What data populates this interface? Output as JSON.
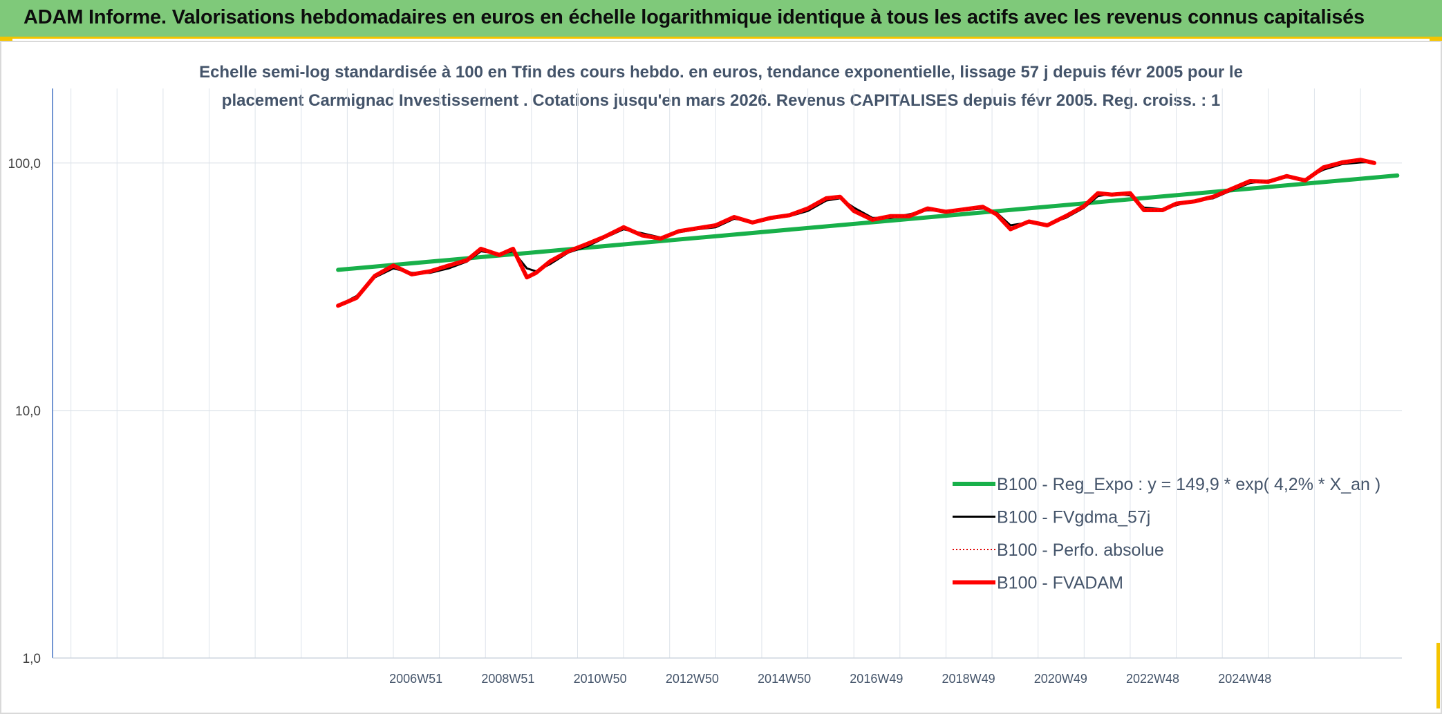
{
  "banner": {
    "title": "ADAM Informe. Valorisations hebdomadaires en euros en échelle logarithmique identique à tous les actifs avec les revenus connus capitalisés",
    "background_color": "#7fc97a",
    "accent_color": "#f5c400"
  },
  "chart_data": {
    "type": "line",
    "title_lines": [
      "Echelle semi-log standardisée à 100 en Tfin des cours hebdo. en euros, tendance exponentielle, lissage 57 j depuis févr 2005 pour le",
      "placement Carmignac Investissement . Cotations jusqu'en mars 2026. Revenus CAPITALISES depuis févr 2005. Reg. croiss. : 1"
    ],
    "y_scale": "log",
    "ylim": [
      1,
      200
    ],
    "y_ticks": [
      {
        "value": 1,
        "label": "1,0"
      },
      {
        "value": 10,
        "label": "10,0"
      },
      {
        "value": 100,
        "label": "100,0"
      }
    ],
    "x_range": [
      1998.6,
      2027.9
    ],
    "x_tick_labels": [
      {
        "x": 2007.0,
        "label": "2006W51"
      },
      {
        "x": 2009.0,
        "label": "2008W51"
      },
      {
        "x": 2011.0,
        "label": "2010W50"
      },
      {
        "x": 2013.0,
        "label": "2012W50"
      },
      {
        "x": 2015.0,
        "label": "2014W50"
      },
      {
        "x": 2017.0,
        "label": "2016W49"
      },
      {
        "x": 2019.0,
        "label": "2018W49"
      },
      {
        "x": 2021.0,
        "label": "2020W49"
      },
      {
        "x": 2023.0,
        "label": "2022W48"
      },
      {
        "x": 2025.0,
        "label": "2024W48"
      }
    ],
    "grid": {
      "vertical": true,
      "horizontal": true
    },
    "legend_position": "bottom-right",
    "series": [
      {
        "name": "B100 - Reg_Expo : y = 149,9 * exp( 4,2% *  X_an )",
        "color": "#18b04a",
        "style": "solid-thick",
        "points": [
          [
            2004.8,
            37.0
          ],
          [
            2027.8,
            89.0
          ]
        ]
      },
      {
        "name": "B100 - FVgdma_57j",
        "color": "#000000",
        "style": "solid",
        "points": [
          [
            2004.8,
            26.5
          ],
          [
            2005.2,
            29.0
          ],
          [
            2005.6,
            34.5
          ],
          [
            2006.0,
            37.5
          ],
          [
            2006.4,
            36.0
          ],
          [
            2006.8,
            36.0
          ],
          [
            2007.2,
            37.5
          ],
          [
            2007.6,
            40.0
          ],
          [
            2007.9,
            44.0
          ],
          [
            2008.3,
            43.0
          ],
          [
            2008.6,
            44.0
          ],
          [
            2008.9,
            37.5
          ],
          [
            2009.1,
            36.5
          ],
          [
            2009.4,
            39.0
          ],
          [
            2009.8,
            43.5
          ],
          [
            2010.2,
            46.0
          ],
          [
            2010.6,
            50.0
          ],
          [
            2011.0,
            54.0
          ],
          [
            2011.4,
            52.0
          ],
          [
            2011.8,
            50.0
          ],
          [
            2012.2,
            52.5
          ],
          [
            2012.6,
            54.0
          ],
          [
            2013.0,
            55.0
          ],
          [
            2013.4,
            59.5
          ],
          [
            2013.8,
            58.0
          ],
          [
            2014.2,
            59.5
          ],
          [
            2014.6,
            61.0
          ],
          [
            2015.0,
            64.0
          ],
          [
            2015.4,
            70.5
          ],
          [
            2015.7,
            72.0
          ],
          [
            2016.0,
            66.0
          ],
          [
            2016.4,
            60.0
          ],
          [
            2016.8,
            60.0
          ],
          [
            2017.2,
            62.0
          ],
          [
            2017.6,
            64.5
          ],
          [
            2018.0,
            64.0
          ],
          [
            2018.4,
            64.5
          ],
          [
            2018.8,
            65.5
          ],
          [
            2019.1,
            63.0
          ],
          [
            2019.4,
            56.0
          ],
          [
            2019.8,
            57.5
          ],
          [
            2020.2,
            56.5
          ],
          [
            2020.6,
            60.0
          ],
          [
            2021.0,
            66.0
          ],
          [
            2021.3,
            73.5
          ],
          [
            2021.6,
            75.0
          ],
          [
            2022.0,
            74.0
          ],
          [
            2022.3,
            66.0
          ],
          [
            2022.7,
            65.0
          ],
          [
            2023.0,
            67.5
          ],
          [
            2023.4,
            70.5
          ],
          [
            2023.8,
            72.0
          ],
          [
            2024.2,
            77.5
          ],
          [
            2024.6,
            83.0
          ],
          [
            2025.0,
            85.0
          ],
          [
            2025.4,
            87.5
          ],
          [
            2025.8,
            86.0
          ],
          [
            2026.2,
            94.0
          ],
          [
            2026.6,
            99.0
          ],
          [
            2027.0,
            100.5
          ],
          [
            2027.3,
            101.0
          ]
        ]
      },
      {
        "name": "B100 - Perfo. absolue",
        "color": "#e00000",
        "style": "dotted",
        "points": [
          [
            2004.8,
            26.5
          ],
          [
            2005.2,
            28.5
          ],
          [
            2005.6,
            35.0
          ],
          [
            2006.0,
            38.5
          ],
          [
            2006.4,
            35.5
          ],
          [
            2006.8,
            36.5
          ],
          [
            2007.2,
            38.5
          ],
          [
            2007.6,
            40.5
          ],
          [
            2007.9,
            45.0
          ],
          [
            2008.3,
            42.5
          ],
          [
            2008.6,
            45.0
          ],
          [
            2008.9,
            34.5
          ],
          [
            2009.1,
            36.0
          ],
          [
            2009.4,
            40.0
          ],
          [
            2009.8,
            44.0
          ],
          [
            2010.2,
            47.0
          ],
          [
            2010.6,
            50.5
          ],
          [
            2011.0,
            55.0
          ],
          [
            2011.4,
            51.0
          ],
          [
            2011.8,
            49.5
          ],
          [
            2012.2,
            53.0
          ],
          [
            2012.6,
            54.5
          ],
          [
            2013.0,
            56.0
          ],
          [
            2013.4,
            60.5
          ],
          [
            2013.8,
            57.5
          ],
          [
            2014.2,
            60.0
          ],
          [
            2014.6,
            61.5
          ],
          [
            2015.0,
            65.5
          ],
          [
            2015.4,
            72.0
          ],
          [
            2015.7,
            73.0
          ],
          [
            2016.0,
            64.0
          ],
          [
            2016.4,
            59.0
          ],
          [
            2016.8,
            61.0
          ],
          [
            2017.2,
            61.0
          ],
          [
            2017.6,
            65.5
          ],
          [
            2018.0,
            63.5
          ],
          [
            2018.4,
            65.0
          ],
          [
            2018.8,
            66.5
          ],
          [
            2019.1,
            62.0
          ],
          [
            2019.4,
            54.0
          ],
          [
            2019.8,
            58.0
          ],
          [
            2020.2,
            56.0
          ],
          [
            2020.6,
            61.0
          ],
          [
            2021.0,
            67.0
          ],
          [
            2021.3,
            75.5
          ],
          [
            2021.6,
            74.5
          ],
          [
            2022.0,
            75.5
          ],
          [
            2022.3,
            64.5
          ],
          [
            2022.7,
            64.5
          ],
          [
            2023.0,
            68.5
          ],
          [
            2023.4,
            70.0
          ],
          [
            2023.8,
            73.0
          ],
          [
            2024.2,
            78.5
          ],
          [
            2024.6,
            84.5
          ],
          [
            2025.0,
            84.0
          ],
          [
            2025.4,
            88.5
          ],
          [
            2025.8,
            85.0
          ],
          [
            2026.2,
            96.0
          ],
          [
            2026.6,
            100.5
          ],
          [
            2027.0,
            103.0
          ],
          [
            2027.3,
            100.0
          ]
        ]
      },
      {
        "name": "B100 - FVADAM",
        "color": "#ff0000",
        "style": "solid-thick",
        "points": [
          [
            2004.8,
            26.5
          ],
          [
            2005.2,
            28.5
          ],
          [
            2005.6,
            35.0
          ],
          [
            2006.0,
            38.5
          ],
          [
            2006.4,
            35.5
          ],
          [
            2006.8,
            36.5
          ],
          [
            2007.2,
            38.5
          ],
          [
            2007.6,
            40.5
          ],
          [
            2007.9,
            45.0
          ],
          [
            2008.3,
            42.5
          ],
          [
            2008.6,
            45.0
          ],
          [
            2008.9,
            34.5
          ],
          [
            2009.1,
            36.0
          ],
          [
            2009.4,
            40.0
          ],
          [
            2009.8,
            44.0
          ],
          [
            2010.2,
            47.0
          ],
          [
            2010.6,
            50.5
          ],
          [
            2011.0,
            55.0
          ],
          [
            2011.4,
            51.0
          ],
          [
            2011.8,
            49.5
          ],
          [
            2012.2,
            53.0
          ],
          [
            2012.6,
            54.5
          ],
          [
            2013.0,
            56.0
          ],
          [
            2013.4,
            60.5
          ],
          [
            2013.8,
            57.5
          ],
          [
            2014.2,
            60.0
          ],
          [
            2014.6,
            61.5
          ],
          [
            2015.0,
            65.5
          ],
          [
            2015.4,
            72.0
          ],
          [
            2015.7,
            73.0
          ],
          [
            2016.0,
            64.0
          ],
          [
            2016.4,
            59.0
          ],
          [
            2016.8,
            61.0
          ],
          [
            2017.2,
            61.0
          ],
          [
            2017.6,
            65.5
          ],
          [
            2018.0,
            63.5
          ],
          [
            2018.4,
            65.0
          ],
          [
            2018.8,
            66.5
          ],
          [
            2019.1,
            62.0
          ],
          [
            2019.4,
            54.0
          ],
          [
            2019.8,
            58.0
          ],
          [
            2020.2,
            56.0
          ],
          [
            2020.6,
            61.0
          ],
          [
            2021.0,
            67.0
          ],
          [
            2021.3,
            75.5
          ],
          [
            2021.6,
            74.5
          ],
          [
            2022.0,
            75.5
          ],
          [
            2022.3,
            64.5
          ],
          [
            2022.7,
            64.5
          ],
          [
            2023.0,
            68.5
          ],
          [
            2023.4,
            70.0
          ],
          [
            2023.8,
            73.0
          ],
          [
            2024.2,
            78.5
          ],
          [
            2024.6,
            84.5
          ],
          [
            2025.0,
            84.0
          ],
          [
            2025.4,
            88.5
          ],
          [
            2025.8,
            85.0
          ],
          [
            2026.2,
            96.0
          ],
          [
            2026.6,
            100.5
          ],
          [
            2027.0,
            103.0
          ],
          [
            2027.3,
            100.0
          ]
        ]
      }
    ]
  }
}
